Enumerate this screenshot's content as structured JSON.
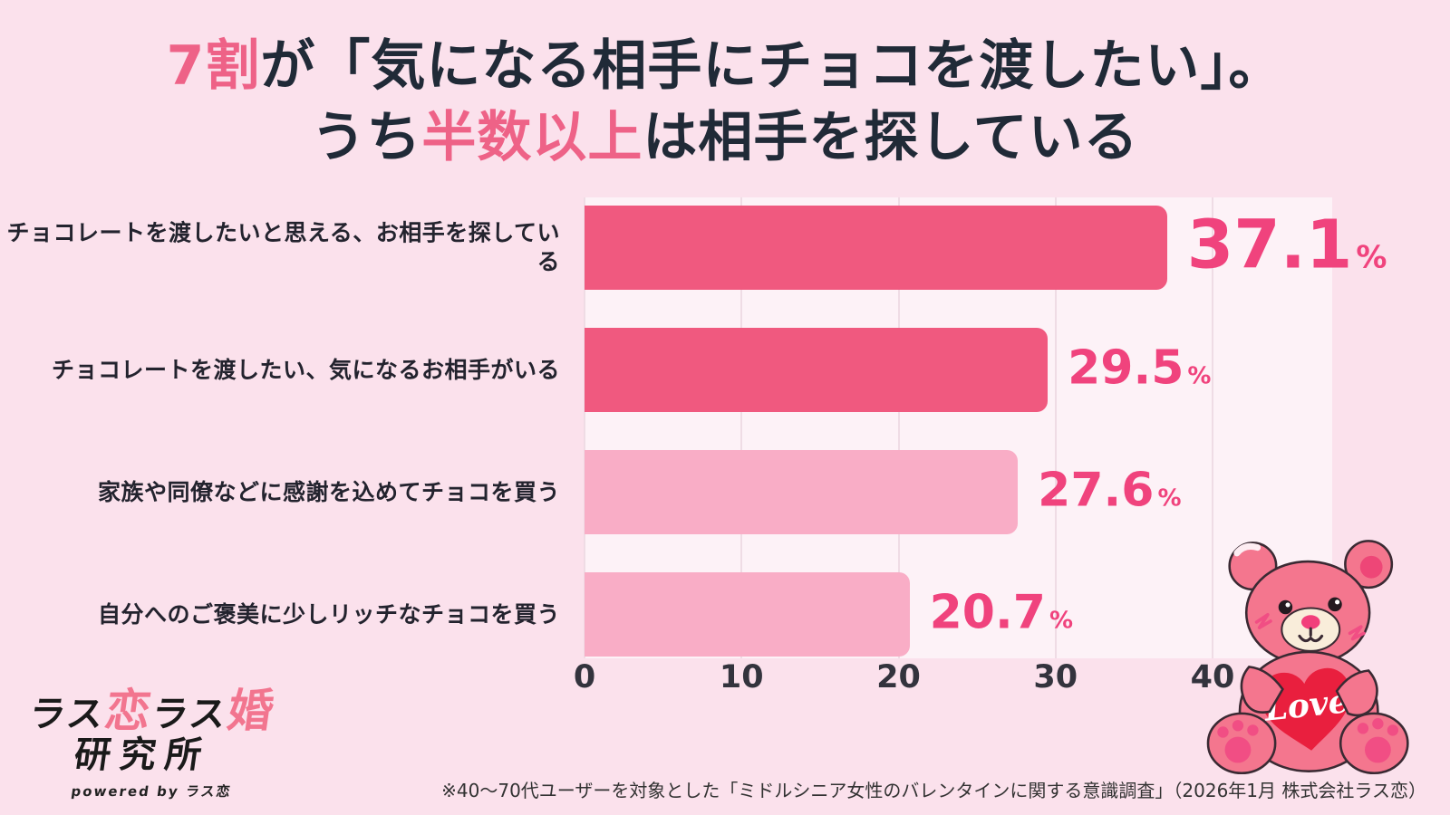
{
  "page": {
    "background": "#FBE1EC"
  },
  "title": {
    "l1_accent": "7割",
    "l1_rest": "が「気になる相手にチョコを渡したい」。",
    "l2_pre": "うち",
    "l2_accent": "半数以上",
    "l2_rest": "は相手を探している",
    "text_color": "#202A37",
    "accent_color": "#EE6287"
  },
  "chart_data": {
    "type": "bar",
    "orientation": "horizontal",
    "title": "",
    "categories": [
      "チョコレートを渡したいと思える、お相手を探している",
      "チョコレートを渡したい、気になるお相手がいる",
      "家族や同僚などに感謝を込めてチョコを買う",
      "自分へのご褒美に少しリッチなチョコを買う"
    ],
    "values": [
      37.1,
      29.5,
      27.6,
      20.7
    ],
    "value_unit": "%",
    "xticks": [
      "0",
      "10",
      "20",
      "30",
      "40"
    ],
    "xtick_values": [
      0,
      10,
      20,
      30,
      40
    ],
    "xlim": [
      0,
      40
    ],
    "grid": "vertical",
    "bar_colors": [
      "#F0597F",
      "#F0597F",
      "#F9ADC6",
      "#F9ADC6"
    ],
    "value_label_color": "#F0437D",
    "plot_background": "#FDF2F7",
    "gridline_color": "#EFDCE5"
  },
  "logo": {
    "ras1": "ラス",
    "koi": "恋",
    "ras2": "ラス",
    "kon": "婚",
    "line2": "研究所",
    "powered": "powered by ラス恋",
    "pink": "#F2758F",
    "black": "#1A1A1A"
  },
  "footnote": {
    "text": "※40〜70代ユーザーを対象とした「ミドルシニア女性のバレンタインに関する意識調査」（2026年1月 株式会社ラス恋）"
  },
  "illustration": {
    "name": "teddy-bear-holding-heart",
    "heart_text": "Love",
    "heart_color": "#E91F3E",
    "body_color": "#F4768E"
  }
}
